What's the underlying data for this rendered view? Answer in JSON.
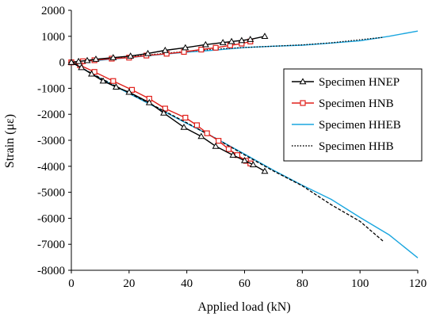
{
  "chart_data": {
    "type": "line",
    "title": "",
    "xlabel": "Applied load (kN)",
    "ylabel": "Strain (με)",
    "xlim": [
      0,
      120
    ],
    "ylim": [
      -8000,
      2000
    ],
    "x_ticks": [
      "0",
      "20",
      "40",
      "60",
      "80",
      "100",
      "120"
    ],
    "y_ticks": [
      "2000",
      "1000",
      "0",
      "-1000",
      "-2000",
      "-3000",
      "-4000",
      "-5000",
      "-6000",
      "-7000",
      "-8000"
    ],
    "grid": false,
    "legend_position": "right",
    "series": [
      {
        "name": "Specimen HNEP",
        "color": "#000000",
        "style": "solid",
        "marker": "triangle",
        "branches": [
          {
            "x": [
              0,
              2.5,
              5.5,
              8.5,
              14.5,
              20.5,
              26.5,
              32.5,
              39.5,
              46.5,
              52.5,
              55.5,
              59,
              62,
              67
            ],
            "y": [
              0,
              35,
              70,
              120,
              180,
              240,
              340,
              460,
              560,
              680,
              760,
              800,
              840,
              880,
              1000
            ]
          },
          {
            "x": [
              0,
              3.5,
              7,
              11,
              15.5,
              20,
              27,
              32,
              39,
              45,
              50,
              56,
              60,
              63,
              67
            ],
            "y": [
              0,
              -200,
              -450,
              -720,
              -950,
              -1150,
              -1550,
              -1950,
              -2500,
              -2850,
              -3230,
              -3570,
              -3780,
              -3940,
              -4190
            ]
          }
        ]
      },
      {
        "name": "Specimen HNB",
        "color": "#e0201b",
        "style": "solid",
        "marker": "square",
        "branches": [
          {
            "x": [
              0,
              4,
              8,
              14,
              20,
              26,
              33,
              39,
              45,
              50,
              55,
              59,
              62
            ],
            "y": [
              0,
              40,
              80,
              140,
              180,
              260,
              330,
              400,
              490,
              560,
              650,
              720,
              800
            ]
          },
          {
            "x": [
              0,
              3,
              8,
              14.5,
              21,
              27,
              32.5,
              39.5,
              43.5,
              47,
              51,
              54.5,
              57.5,
              60.5,
              62
            ],
            "y": [
              0,
              -110,
              -370,
              -720,
              -1060,
              -1400,
              -1780,
              -2130,
              -2420,
              -2730,
              -3020,
              -3340,
              -3570,
              -3790,
              -3890
            ]
          }
        ]
      },
      {
        "name": "Specimen HHEB",
        "color": "#1aa6df",
        "style": "solid",
        "marker": "none",
        "branches": [
          {
            "x": [
              0,
              10,
              20,
              30,
              40,
              50,
              60,
              70,
              80,
              90,
              100,
              110,
              120
            ],
            "y": [
              0,
              80,
              180,
              290,
              390,
              470,
              570,
              620,
              660,
              740,
              830,
              1000,
              1200
            ]
          },
          {
            "x": [
              0,
              10,
              20,
              30,
              40,
              50,
              60,
              70,
              80,
              90,
              100,
              110,
              120
            ],
            "y": [
              0,
              -620,
              -1200,
              -1770,
              -2350,
              -2920,
              -3530,
              -4150,
              -4730,
              -5270,
              -5970,
              -6630,
              -7520
            ]
          }
        ]
      },
      {
        "name": "Specimen HHB",
        "color": "#000000",
        "style": "dotted",
        "marker": "none",
        "branches": [
          {
            "x": [
              0,
              10,
              20,
              30,
              40,
              50,
              60,
              70,
              80,
              90,
              100,
              108
            ],
            "y": [
              0,
              100,
              210,
              320,
              420,
              510,
              570,
              620,
              670,
              750,
              870,
              960
            ]
          },
          {
            "x": [
              0,
              10,
              20,
              30,
              40,
              50,
              60,
              70,
              80,
              90,
              100,
              108
            ],
            "y": [
              0,
              -600,
              -1180,
              -1750,
              -2330,
              -2930,
              -3560,
              -4180,
              -4750,
              -5480,
              -6120,
              -6880
            ]
          }
        ]
      }
    ]
  }
}
